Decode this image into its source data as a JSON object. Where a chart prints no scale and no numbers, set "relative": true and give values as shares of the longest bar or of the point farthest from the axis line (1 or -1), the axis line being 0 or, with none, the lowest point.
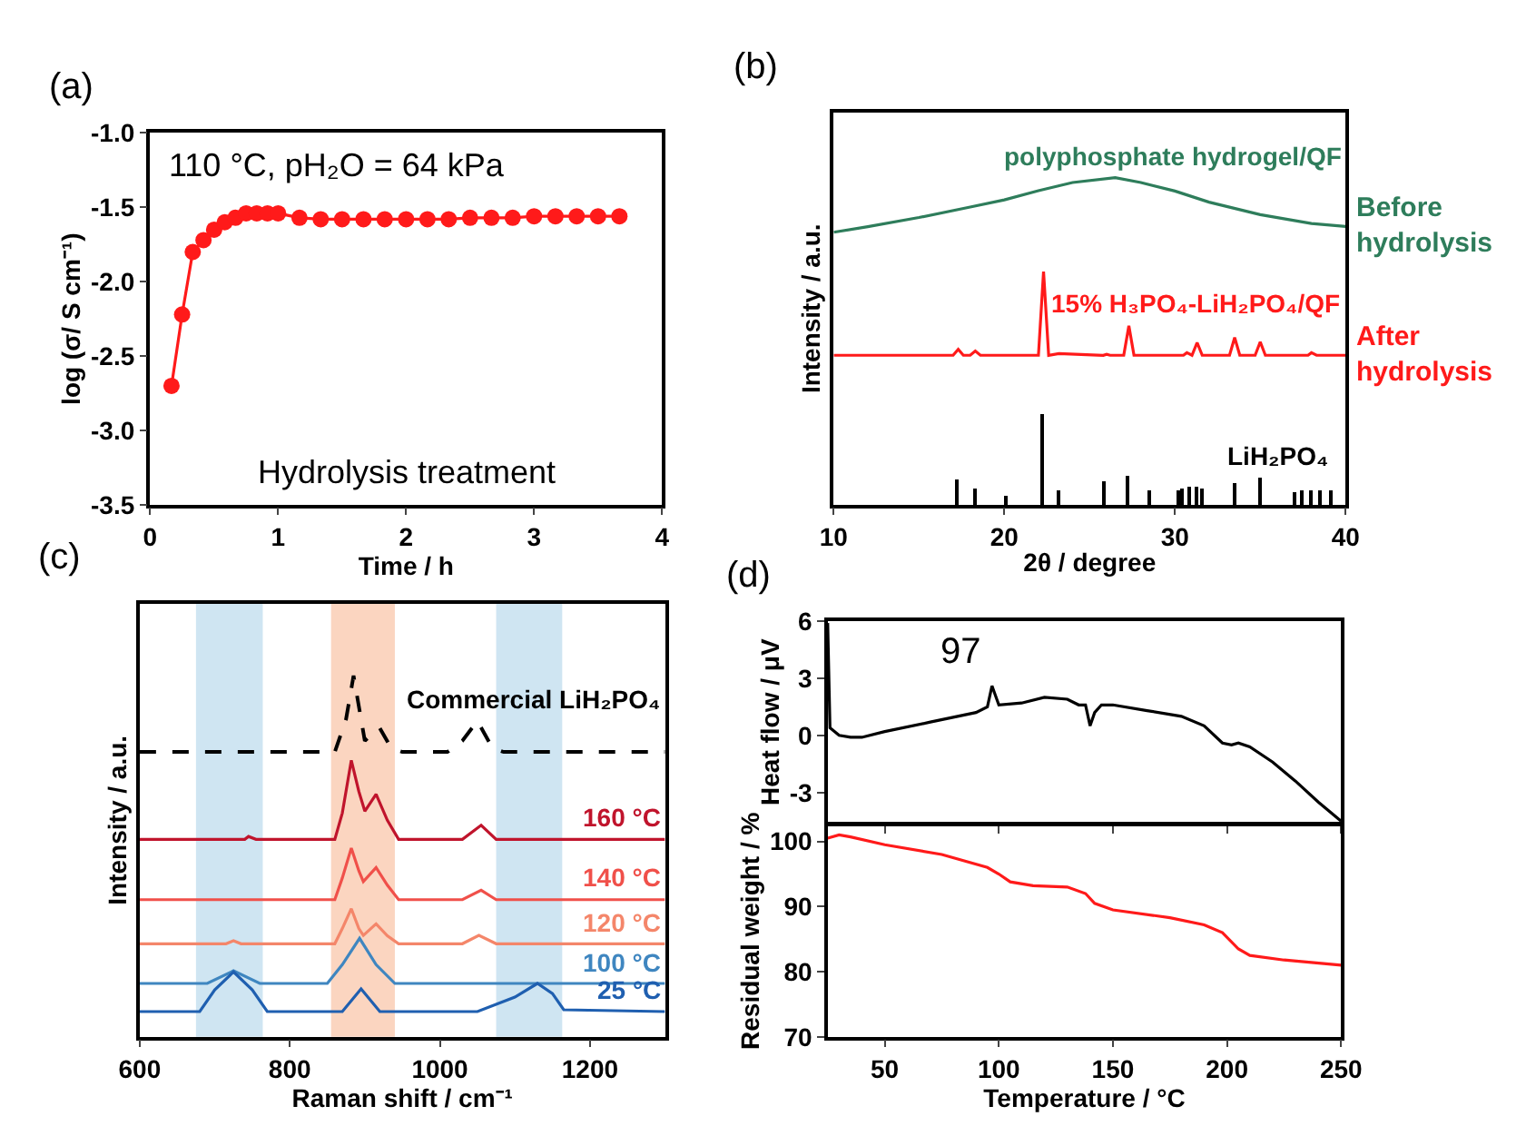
{
  "chart_data": [
    {
      "type": "line",
      "title": "(a)",
      "xlabel": "Time / h",
      "ylabel": "log (σ/ S cm⁻¹)",
      "xlim": [
        0,
        4
      ],
      "ylim": [
        -3.5,
        -1.0
      ],
      "xticks": [
        0,
        1,
        2,
        3,
        4
      ],
      "yticks": [
        {
          "value": -3.5,
          "label": "-3.5"
        },
        {
          "value": -3.0,
          "label": "-3.0"
        },
        {
          "value": -2.5,
          "label": "-2.5"
        },
        {
          "value": -2.0,
          "label": "-2.0"
        },
        {
          "value": -1.5,
          "label": "-1.5"
        },
        {
          "value": -1.0,
          "label": "-1.0"
        }
      ],
      "marker": "circle",
      "annotations": [
        "110 °C, pH₂O = 64 kPa",
        "Hydrolysis treatment"
      ],
      "series": [
        {
          "color": "#ff1a1a",
          "x": [
            0.167,
            0.25,
            0.333,
            0.417,
            0.5,
            0.583,
            0.667,
            0.75,
            0.833,
            0.917,
            1.0,
            1.167,
            1.333,
            1.5,
            1.667,
            1.833,
            2.0,
            2.167,
            2.333,
            2.5,
            2.667,
            2.833,
            3.0,
            3.167,
            3.333,
            3.5,
            3.667
          ],
          "values": [
            -2.7,
            -2.22,
            -1.8,
            -1.72,
            -1.65,
            -1.6,
            -1.57,
            -1.54,
            -1.54,
            -1.54,
            -1.54,
            -1.57,
            -1.58,
            -1.58,
            -1.58,
            -1.58,
            -1.58,
            -1.58,
            -1.58,
            -1.57,
            -1.57,
            -1.57,
            -1.56,
            -1.56,
            -1.56,
            -1.56,
            -1.56
          ]
        }
      ]
    },
    {
      "type": "line",
      "title": "(b)",
      "xlabel": "2θ / degree",
      "ylabel": "Intensity / a.u.",
      "xlim": [
        10,
        40
      ],
      "xticks": [
        10,
        20,
        30,
        40
      ],
      "relative": true,
      "tick_labels": "x",
      "annotations": [
        "Before hydrolysis",
        "After hydrolysis"
      ],
      "series": [
        {
          "name": "polyphosphate hydrogel/QF",
          "color": "#2e7d5b",
          "x": [
            10,
            12,
            15,
            18,
            20,
            22,
            24,
            26.5,
            28,
            30,
            32,
            35,
            38,
            40
          ],
          "values": [
            0.833,
            0.85,
            0.878,
            0.91,
            0.932,
            0.96,
            0.985,
            1.0,
            0.985,
            0.959,
            0.925,
            0.887,
            0.86,
            0.851
          ]
        },
        {
          "name": "15% H₃PO₄-LiH₂PO₄/QF",
          "color": "#ff1a1a",
          "x": [
            10,
            17.0,
            17.3,
            17.6,
            18.0,
            18.3,
            18.6,
            22.0,
            22.3,
            22.6,
            23.2,
            25.8,
            26.0,
            26.2,
            27.0,
            27.3,
            27.6,
            30.5,
            30.7,
            31.0,
            31.3,
            31.6,
            33.2,
            33.5,
            33.8,
            34.7,
            35.0,
            35.3,
            37.8,
            38.0,
            38.3,
            40
          ],
          "values": [
            0.457,
            0.457,
            0.475,
            0.457,
            0.457,
            0.47,
            0.457,
            0.457,
            0.713,
            0.457,
            0.462,
            0.457,
            0.46,
            0.457,
            0.457,
            0.547,
            0.457,
            0.457,
            0.465,
            0.457,
            0.496,
            0.457,
            0.457,
            0.511,
            0.457,
            0.457,
            0.498,
            0.457,
            0.457,
            0.465,
            0.457,
            0.457
          ]
        },
        {
          "name": "LiH₂PO₄",
          "type": "bar",
          "color": "#000000",
          "x": [
            17.3,
            18.3,
            20.1,
            22.3,
            23.2,
            25.9,
            27.3,
            28.5,
            30.2,
            30.5,
            30.9,
            31.3,
            31.6,
            33.5,
            35.0,
            37.1,
            37.5,
            38.0,
            38.5,
            39.2
          ],
          "values": [
            0.081,
            0.054,
            0.027,
            0.278,
            0.045,
            0.072,
            0.09,
            0.045,
            0.045,
            0.054,
            0.059,
            0.059,
            0.054,
            0.066,
            0.084,
            0.041,
            0.045,
            0.048,
            0.045,
            0.045
          ]
        }
      ]
    },
    {
      "type": "line",
      "title": "(c)",
      "xlabel": "Raman shift / cm⁻¹",
      "ylabel": "Intensity / a.u.",
      "xlim": [
        600,
        1300
      ],
      "xticks": [
        600,
        800,
        1000,
        1200
      ],
      "relative": true,
      "tick_labels": "x",
      "bands": [
        {
          "axis": "x",
          "from": 855,
          "to": 940,
          "color": "#fbd5c0"
        },
        {
          "axis": "x",
          "from": 675,
          "to": 764,
          "color": "#cfe5f2"
        },
        {
          "axis": "x",
          "from": 1075,
          "to": 1163,
          "color": "#cfe5f2"
        }
      ],
      "series": [
        {
          "name": "Commercial LiH₂PO₄",
          "color": "#000000",
          "line_style": "dashed",
          "x": [
            600,
            860,
            875,
            885,
            900,
            910,
            920,
            935,
            950,
            1010,
            1030,
            1050,
            1070,
            1085,
            1300
          ],
          "values": [
            0.789,
            0.789,
            0.88,
            1.0,
            0.82,
            0.84,
            0.855,
            0.8,
            0.789,
            0.789,
            0.82,
            0.875,
            0.8,
            0.789,
            0.789
          ]
        },
        {
          "name": "160 °C",
          "color": "#c0142c",
          "x": [
            600,
            740,
            745,
            755,
            860,
            870,
            882,
            892,
            900,
            915,
            930,
            945,
            1030,
            1055,
            1075,
            1300
          ],
          "values": [
            0.547,
            0.547,
            0.555,
            0.547,
            0.547,
            0.62,
            0.766,
            0.68,
            0.625,
            0.672,
            0.6,
            0.547,
            0.547,
            0.586,
            0.547,
            0.547
          ]
        },
        {
          "name": "140 °C",
          "color": "#f0504a",
          "x": [
            600,
            860,
            870,
            882,
            892,
            898,
            915,
            930,
            945,
            1030,
            1055,
            1075,
            1300
          ],
          "values": [
            0.38,
            0.38,
            0.44,
            0.523,
            0.46,
            0.43,
            0.469,
            0.42,
            0.38,
            0.38,
            0.406,
            0.38,
            0.38
          ]
        },
        {
          "name": "120 °C",
          "color": "#f4866a",
          "x": [
            600,
            715,
            725,
            735,
            860,
            870,
            882,
            892,
            898,
            915,
            930,
            945,
            1030,
            1052,
            1075,
            1300
          ],
          "values": [
            0.258,
            0.258,
            0.266,
            0.258,
            0.258,
            0.3,
            0.355,
            0.3,
            0.281,
            0.313,
            0.28,
            0.258,
            0.258,
            0.281,
            0.258,
            0.258
          ]
        },
        {
          "name": "100 °C",
          "color": "#3f86c0",
          "x": [
            600,
            690,
            725,
            760,
            850,
            870,
            893,
            915,
            940,
            1300
          ],
          "values": [
            0.148,
            0.148,
            0.183,
            0.148,
            0.148,
            0.2,
            0.273,
            0.2,
            0.148,
            0.148
          ]
        },
        {
          "name": "25 °C",
          "color": "#1f5fb0",
          "x": [
            600,
            680,
            700,
            725,
            750,
            770,
            870,
            895,
            920,
            1050,
            1100,
            1130,
            1150,
            1165,
            1300
          ],
          "values": [
            0.07,
            0.07,
            0.13,
            0.18,
            0.13,
            0.07,
            0.07,
            0.133,
            0.07,
            0.07,
            0.11,
            0.148,
            0.12,
            0.075,
            0.07
          ]
        }
      ]
    },
    {
      "type": "line",
      "title": "(d)",
      "ylabel": "Heat flow / μV",
      "xlim": [
        25,
        250
      ],
      "ylim": [
        -4.6,
        6
      ],
      "xticks": [
        50,
        100,
        150,
        200,
        250
      ],
      "yticks": [
        -3,
        0,
        3,
        6
      ],
      "tick_labels": "y",
      "annotations": [
        {
          "text": "97",
          "x": 97,
          "y": 2.6
        }
      ],
      "series": [
        {
          "color": "#000000",
          "x": [
            25,
            26,
            30,
            35,
            40,
            50,
            70,
            90,
            95,
            97,
            100,
            110,
            120,
            130,
            135,
            138,
            140,
            142,
            145,
            150,
            165,
            180,
            190,
            198,
            202,
            205,
            210,
            220,
            230,
            240,
            250
          ],
          "values": [
            5.9,
            0.4,
            0.0,
            -0.1,
            -0.1,
            0.2,
            0.7,
            1.2,
            1.5,
            2.6,
            1.6,
            1.7,
            2.0,
            1.9,
            1.6,
            1.6,
            0.5,
            1.2,
            1.6,
            1.6,
            1.3,
            1.0,
            0.5,
            -0.4,
            -0.5,
            -0.4,
            -0.6,
            -1.4,
            -2.4,
            -3.5,
            -4.5
          ]
        }
      ]
    },
    {
      "type": "line",
      "xlabel": "Temperature / °C",
      "ylabel": "Residual weight / %",
      "xlim": [
        25,
        250
      ],
      "ylim": [
        70,
        102.5
      ],
      "xticks": [
        50,
        100,
        150,
        200,
        250
      ],
      "yticks": [
        70,
        80,
        90,
        100
      ],
      "series": [
        {
          "color": "#ff1a1a",
          "x": [
            25,
            30,
            35,
            50,
            75,
            95,
            100,
            105,
            115,
            130,
            138,
            142,
            150,
            175,
            190,
            198,
            205,
            210,
            225,
            250
          ],
          "values": [
            100.5,
            101,
            100.7,
            99.5,
            98,
            96,
            95,
            93.8,
            93.2,
            93,
            92,
            90.5,
            89.5,
            88.3,
            87.2,
            86,
            83.5,
            82.5,
            81.8,
            81
          ]
        }
      ]
    }
  ]
}
